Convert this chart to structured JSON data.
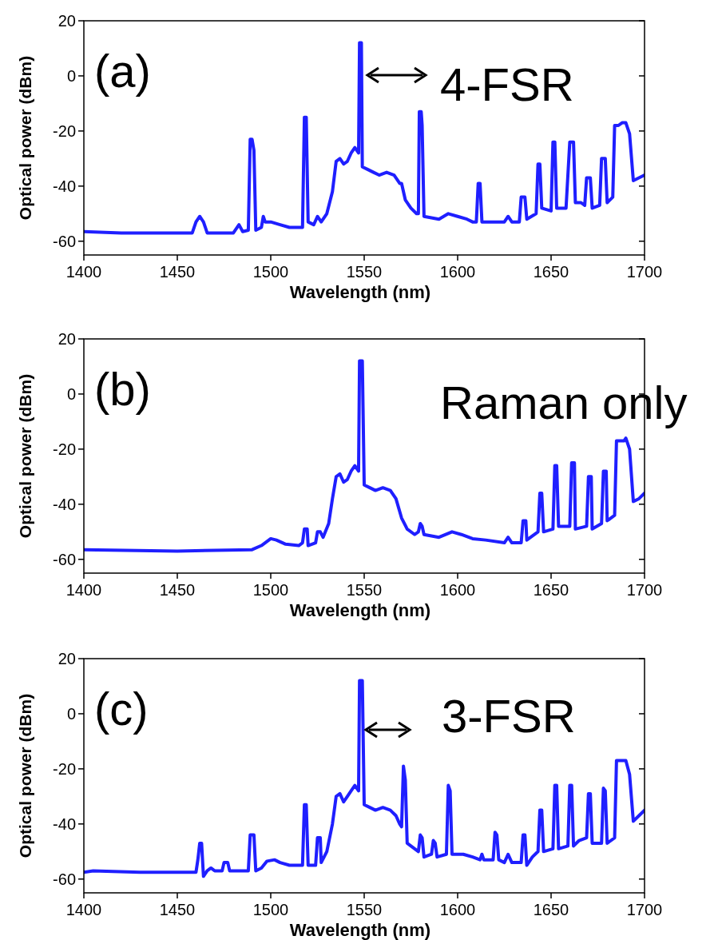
{
  "chart_data": [
    {
      "type": "line",
      "xlabel": "Wavelength (nm)",
      "ylabel": "Optical power (dBm)",
      "annotations": [
        "(a)",
        "4-FSR"
      ],
      "xlim": [
        1400,
        1700
      ],
      "xticks": [
        1400,
        1450,
        1500,
        1550,
        1600,
        1650,
        1700
      ],
      "ylim": [
        -65,
        20
      ],
      "yticks": [
        -60,
        -40,
        -20,
        0,
        20
      ],
      "x": [
        1400,
        1420,
        1440,
        1458,
        1460,
        1462,
        1464,
        1466,
        1480,
        1483,
        1485,
        1488,
        1489,
        1490,
        1491,
        1492,
        1495,
        1496,
        1497,
        1500,
        1505,
        1510,
        1515,
        1517,
        1518,
        1519,
        1520,
        1523,
        1525,
        1527,
        1530,
        1533,
        1535,
        1537,
        1539,
        1541,
        1543,
        1545,
        1547,
        1547.5,
        1548.5,
        1549,
        1552,
        1555,
        1558,
        1562,
        1566,
        1569,
        1570,
        1571,
        1572,
        1575,
        1578,
        1579,
        1579.5,
        1580.5,
        1581,
        1582,
        1590,
        1595,
        1600,
        1605,
        1608,
        1610,
        1611,
        1612,
        1613,
        1620,
        1625,
        1627,
        1629,
        1633,
        1634,
        1636,
        1637,
        1642,
        1643,
        1644,
        1645,
        1650,
        1651,
        1652,
        1653,
        1658,
        1660,
        1662,
        1663,
        1666,
        1668,
        1669,
        1671,
        1672,
        1676,
        1677,
        1679,
        1680,
        1683,
        1684,
        1686,
        1688,
        1690,
        1692,
        1694,
        1697,
        1700
      ],
      "series": [
        {
          "color": "#1f1fff",
          "values": [
            -56.5,
            -57,
            -57,
            -57,
            -53,
            -51,
            -53,
            -57,
            -57,
            -54,
            -56.5,
            -56,
            -23,
            -23,
            -27,
            -56,
            -55,
            -51,
            -53,
            -53,
            -54,
            -55,
            -55,
            -55,
            -15,
            -15,
            -53,
            -54,
            -51,
            -53,
            -50,
            -42,
            -31,
            -30,
            -32,
            -31,
            -28,
            -26,
            -28,
            12,
            12,
            -33,
            -34,
            -35,
            -36,
            -35,
            -36,
            -39,
            -39,
            -42,
            -45,
            -48,
            -50,
            -50,
            -13,
            -13,
            -18,
            -51,
            -52,
            -50,
            -51,
            -52,
            -53,
            -53,
            -39,
            -39,
            -53,
            -53,
            -53,
            -51,
            -53,
            -53,
            -44,
            -44,
            -52,
            -50,
            -32,
            -32,
            -48,
            -49,
            -24,
            -24,
            -48,
            -48,
            -24,
            -24,
            -46,
            -46,
            -47,
            -37,
            -37,
            -48,
            -47,
            -30,
            -30,
            -46,
            -44,
            -18,
            -18,
            -17,
            -17,
            -21,
            -38,
            -37,
            -36
          ]
        }
      ]
    },
    {
      "type": "line",
      "xlabel": "Wavelength (nm)",
      "ylabel": "Optical power (dBm)",
      "annotations": [
        "(b)",
        "Raman only"
      ],
      "xlim": [
        1400,
        1700
      ],
      "xticks": [
        1400,
        1450,
        1500,
        1550,
        1600,
        1650,
        1700
      ],
      "ylim": [
        -65,
        20
      ],
      "yticks": [
        -60,
        -40,
        -20,
        0,
        20
      ],
      "x": [
        1400,
        1450,
        1490,
        1495,
        1500,
        1503,
        1508,
        1515,
        1517,
        1518,
        1519.5,
        1520,
        1524,
        1525,
        1526.5,
        1528,
        1531,
        1533,
        1535,
        1537,
        1539,
        1541,
        1543,
        1545,
        1547,
        1547.5,
        1549,
        1550,
        1553,
        1556,
        1560,
        1564,
        1567,
        1570,
        1573,
        1577,
        1579,
        1580,
        1581,
        1582,
        1590,
        1597,
        1602,
        1608,
        1615,
        1625,
        1627,
        1629,
        1634,
        1635,
        1636.5,
        1637,
        1643,
        1644,
        1645,
        1646,
        1651,
        1652,
        1653,
        1654,
        1660,
        1661,
        1662.5,
        1663,
        1669,
        1670,
        1671.5,
        1672,
        1677,
        1678,
        1679.5,
        1680,
        1684,
        1685,
        1687,
        1689,
        1690,
        1692,
        1694,
        1697,
        1700
      ],
      "series": [
        {
          "color": "#1f1fff",
          "values": [
            -56.5,
            -57,
            -56.5,
            -55,
            -52.5,
            -53,
            -54.5,
            -55,
            -54,
            -49,
            -49,
            -55,
            -54,
            -50,
            -50,
            -52,
            -47,
            -38,
            -30,
            -29,
            -32,
            -31,
            -28,
            -26,
            -28,
            12,
            12,
            -33,
            -34,
            -35,
            -34,
            -35,
            -38,
            -45,
            -49,
            -51,
            -50,
            -47,
            -48,
            -51,
            -52,
            -50,
            -51,
            -52.5,
            -53,
            -54,
            -52,
            -54,
            -54,
            -46,
            -46,
            -53,
            -50,
            -36,
            -36,
            -50,
            -49,
            -26,
            -26,
            -48,
            -48,
            -25,
            -25,
            -49,
            -48,
            -30,
            -30,
            -49,
            -47,
            -28,
            -28,
            -46,
            -44,
            -17,
            -17,
            -17,
            -16,
            -20,
            -39,
            -38,
            -36
          ]
        }
      ]
    },
    {
      "type": "line",
      "xlabel": "Wavelength (nm)",
      "ylabel": "Optical power (dBm)",
      "annotations": [
        "(c)",
        "3-FSR"
      ],
      "xlim": [
        1400,
        1700
      ],
      "xticks": [
        1400,
        1450,
        1500,
        1550,
        1600,
        1650,
        1700
      ],
      "ylim": [
        -65,
        20
      ],
      "yticks": [
        -60,
        -40,
        -20,
        0,
        20
      ],
      "x": [
        1400,
        1405,
        1430,
        1450,
        1460,
        1461,
        1462,
        1463,
        1464,
        1466,
        1468,
        1470,
        1474,
        1475,
        1477,
        1478,
        1488,
        1489,
        1491,
        1492,
        1495,
        1498,
        1502,
        1505,
        1510,
        1515,
        1517,
        1518,
        1519,
        1520,
        1524,
        1525,
        1526.5,
        1527,
        1530,
        1533,
        1535,
        1537,
        1539,
        1541,
        1543,
        1545,
        1547,
        1547.5,
        1549,
        1550,
        1553,
        1556,
        1560,
        1564,
        1567,
        1569,
        1570,
        1571,
        1572,
        1573,
        1577,
        1579,
        1580,
        1581,
        1582,
        1586,
        1587,
        1588,
        1589,
        1594,
        1595,
        1596,
        1597,
        1603,
        1608,
        1612,
        1613,
        1614,
        1619,
        1620,
        1621,
        1622,
        1625,
        1627,
        1629,
        1634,
        1635,
        1636,
        1637,
        1640,
        1643,
        1644,
        1645,
        1646,
        1651,
        1652,
        1653,
        1654,
        1659,
        1660,
        1661,
        1662,
        1665,
        1669,
        1670,
        1671,
        1672,
        1677,
        1678,
        1679,
        1680,
        1684,
        1685,
        1688,
        1690,
        1692,
        1694,
        1697,
        1700
      ],
      "series": [
        {
          "color": "#1f1fff",
          "values": [
            -57.5,
            -57,
            -57.5,
            -57.5,
            -57.5,
            -53,
            -47,
            -47,
            -59,
            -57,
            -56,
            -57,
            -57,
            -54,
            -54,
            -57,
            -57,
            -44,
            -44,
            -57,
            -56,
            -53.5,
            -53,
            -54,
            -55,
            -55,
            -55,
            -33,
            -33,
            -55,
            -55,
            -45,
            -45,
            -54,
            -50,
            -40,
            -30,
            -29,
            -32,
            -30,
            -28,
            -26,
            -28,
            12,
            12,
            -33,
            -34,
            -35,
            -34,
            -35,
            -37,
            -40,
            -41,
            -19,
            -24,
            -47,
            -49,
            -50,
            -44,
            -45,
            -52,
            -51,
            -46,
            -47,
            -52,
            -51,
            -26,
            -28,
            -51,
            -51,
            -52,
            -53,
            -51,
            -53,
            -53,
            -43,
            -44,
            -53,
            -54,
            -51,
            -54,
            -54,
            -44,
            -44,
            -55,
            -52,
            -50,
            -35,
            -35,
            -50,
            -49,
            -26,
            -26,
            -49,
            -48,
            -26,
            -26,
            -48,
            -46,
            -45,
            -29,
            -29,
            -47,
            -47,
            -27,
            -28,
            -47,
            -45,
            -17,
            -17,
            -17,
            -22,
            -39,
            -37,
            -35
          ]
        }
      ]
    }
  ]
}
